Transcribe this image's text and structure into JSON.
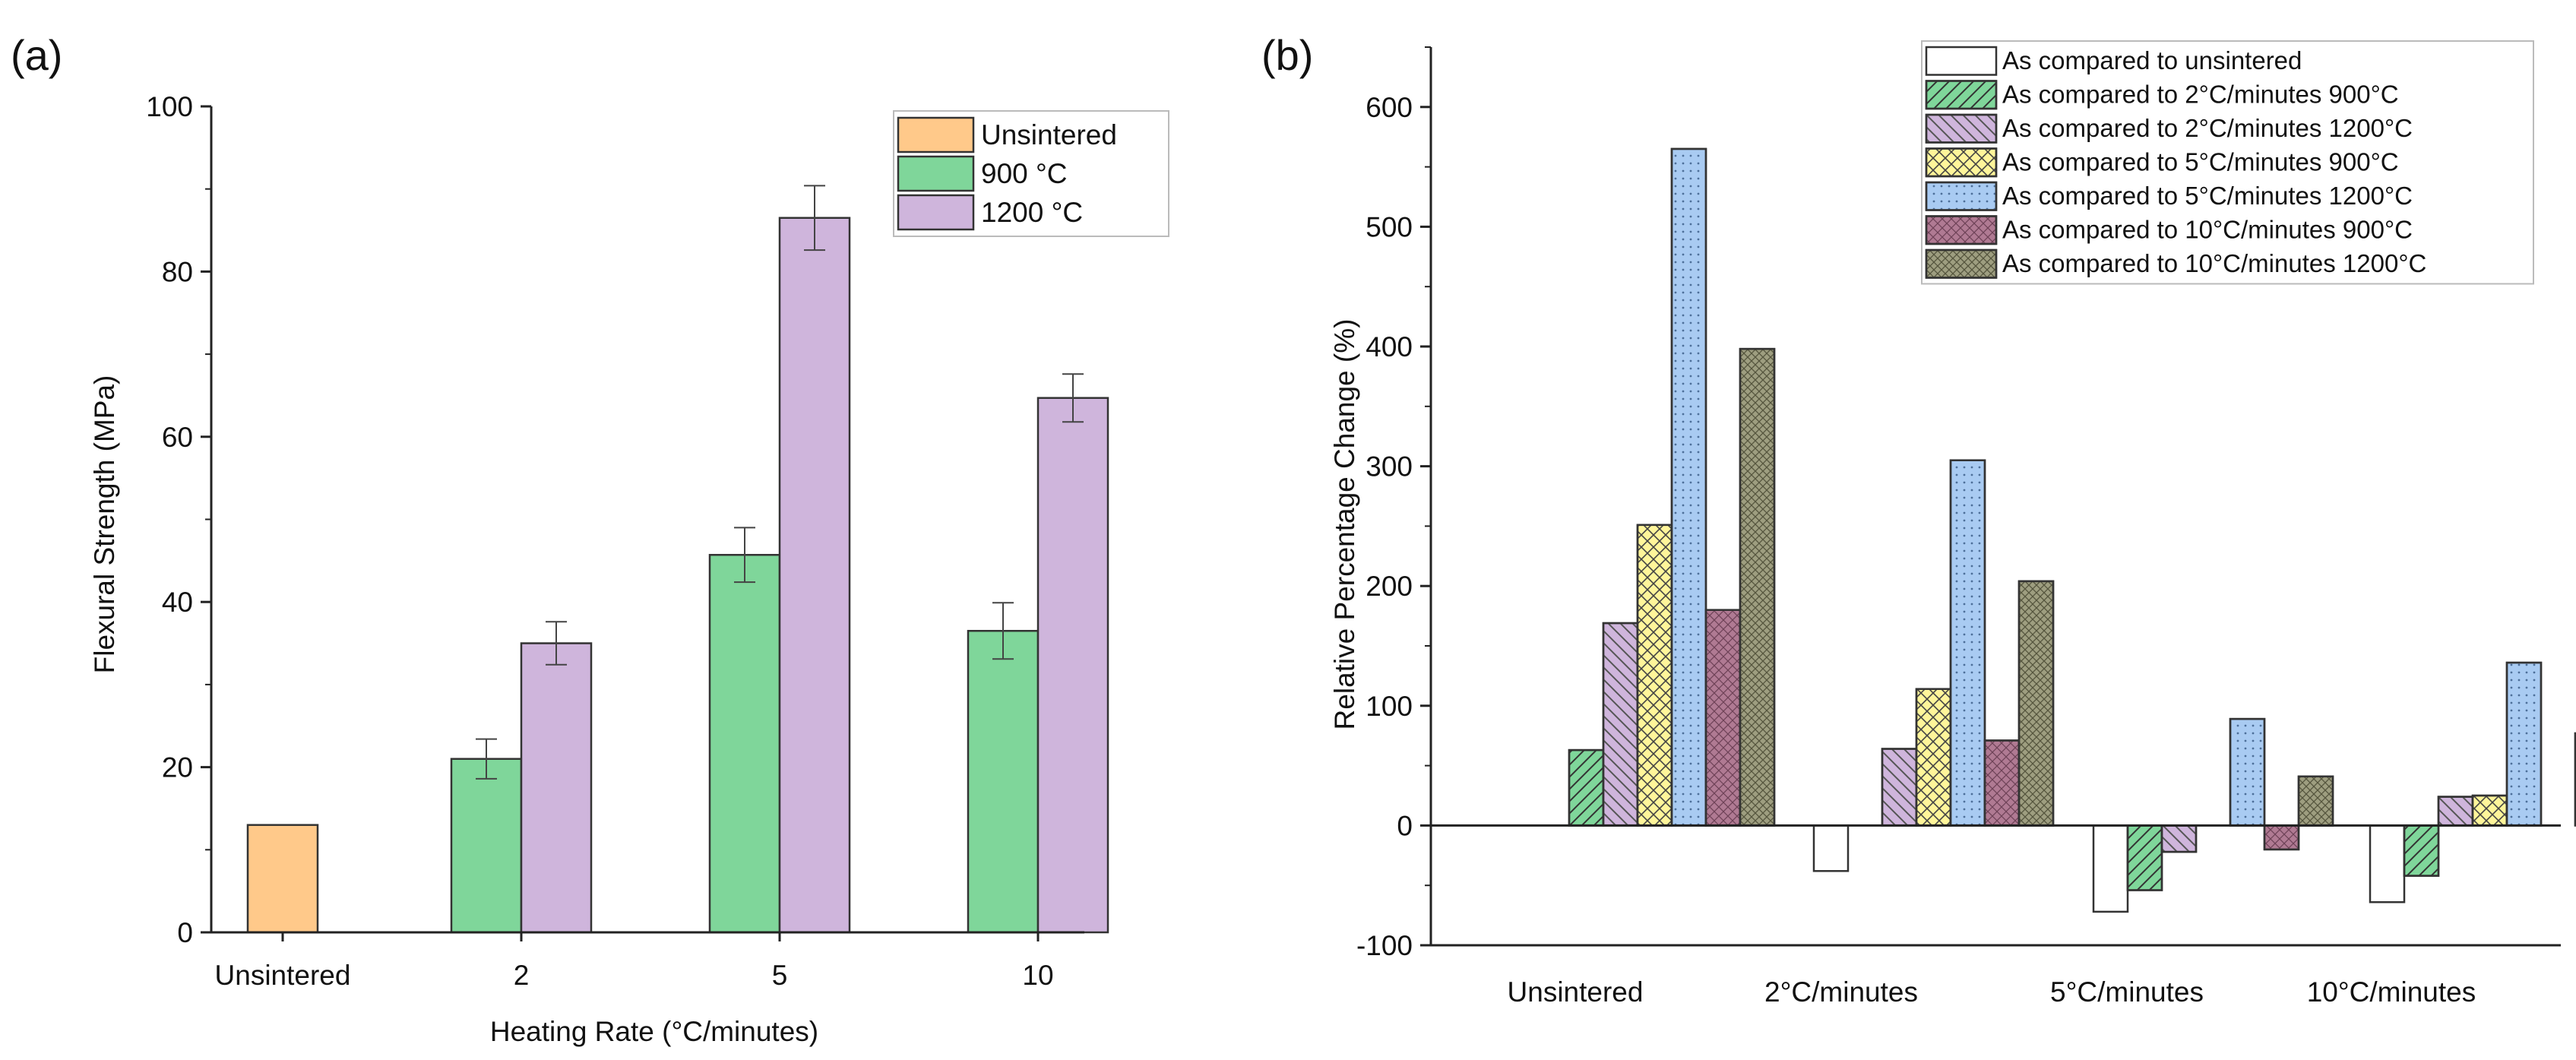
{
  "chart_data": [
    {
      "panel_label": "(a)",
      "type": "bar",
      "xlabel": "Heating Rate (°C/minutes)",
      "ylabel": "Flexural Strength (MPa)",
      "ylim": [
        0,
        100
      ],
      "yticks": [
        0,
        20,
        40,
        60,
        80,
        100
      ],
      "categories": [
        "Unsintered",
        "2",
        "5",
        "10"
      ],
      "legend_position": "top-right",
      "series": [
        {
          "name": "Unsintered",
          "color": "#FFC98A",
          "values": [
            13,
            null,
            null,
            null
          ],
          "errors": [
            null,
            null,
            null,
            null
          ]
        },
        {
          "name": "900 °C",
          "color": "#7FD69A",
          "values": [
            null,
            21,
            45.7,
            36.5
          ],
          "errors": [
            null,
            2.4,
            3.3,
            3.4
          ]
        },
        {
          "name": "1200 °C",
          "color": "#CFB5DC",
          "values": [
            null,
            35,
            86.5,
            64.7
          ],
          "errors": [
            null,
            2.6,
            3.9,
            2.9
          ]
        }
      ]
    },
    {
      "panel_label": "(b)",
      "type": "bar",
      "xlabel": "",
      "ylabel": "Relative Percentage Change (%)",
      "ylim": [
        -100,
        650
      ],
      "yticks": [
        -100,
        0,
        100,
        200,
        300,
        400,
        500,
        600
      ],
      "categories": [
        "Unsintered",
        "2°C/minutes",
        "5°C/minutes",
        "10°C/minutes"
      ],
      "legend_position": "top-right",
      "series": [
        {
          "name": "As compared to unsintered",
          "color": "#FFFFFF",
          "pattern": "none",
          "values": [
            null,
            -38,
            -72,
            -64
          ]
        },
        {
          "name": "As compared to 2°C/minutes 900°C",
          "color": "#7FD69A",
          "pattern": "forward-diagonal",
          "values": [
            63,
            null,
            -54,
            -42
          ]
        },
        {
          "name": "As compared to 2°C/minutes 1200°C",
          "color": "#CFB5DC",
          "pattern": "back-diagonal",
          "values": [
            169,
            64,
            -22,
            24
          ]
        },
        {
          "name": "As compared to 5°C/minutes 900°C",
          "color": "#FFF59A",
          "pattern": "cross-diagonal",
          "values": [
            251,
            114,
            null,
            25
          ]
        },
        {
          "name": "As compared to 5°C/minutes 1200°C",
          "color": "#A9CBF2",
          "pattern": "dots",
          "values": [
            565,
            305,
            89,
            136
          ]
        },
        {
          "name": "As compared to 10°C/minutes 900°C",
          "color": "#B07A93",
          "pattern": "grid",
          "values": [
            180,
            71,
            -20,
            null
          ]
        },
        {
          "name": "As compared to 10°C/minutes 1200°C",
          "color": "#9E9E80",
          "pattern": "crosshatch",
          "values": [
            398,
            204,
            41,
            77
          ]
        }
      ]
    }
  ]
}
